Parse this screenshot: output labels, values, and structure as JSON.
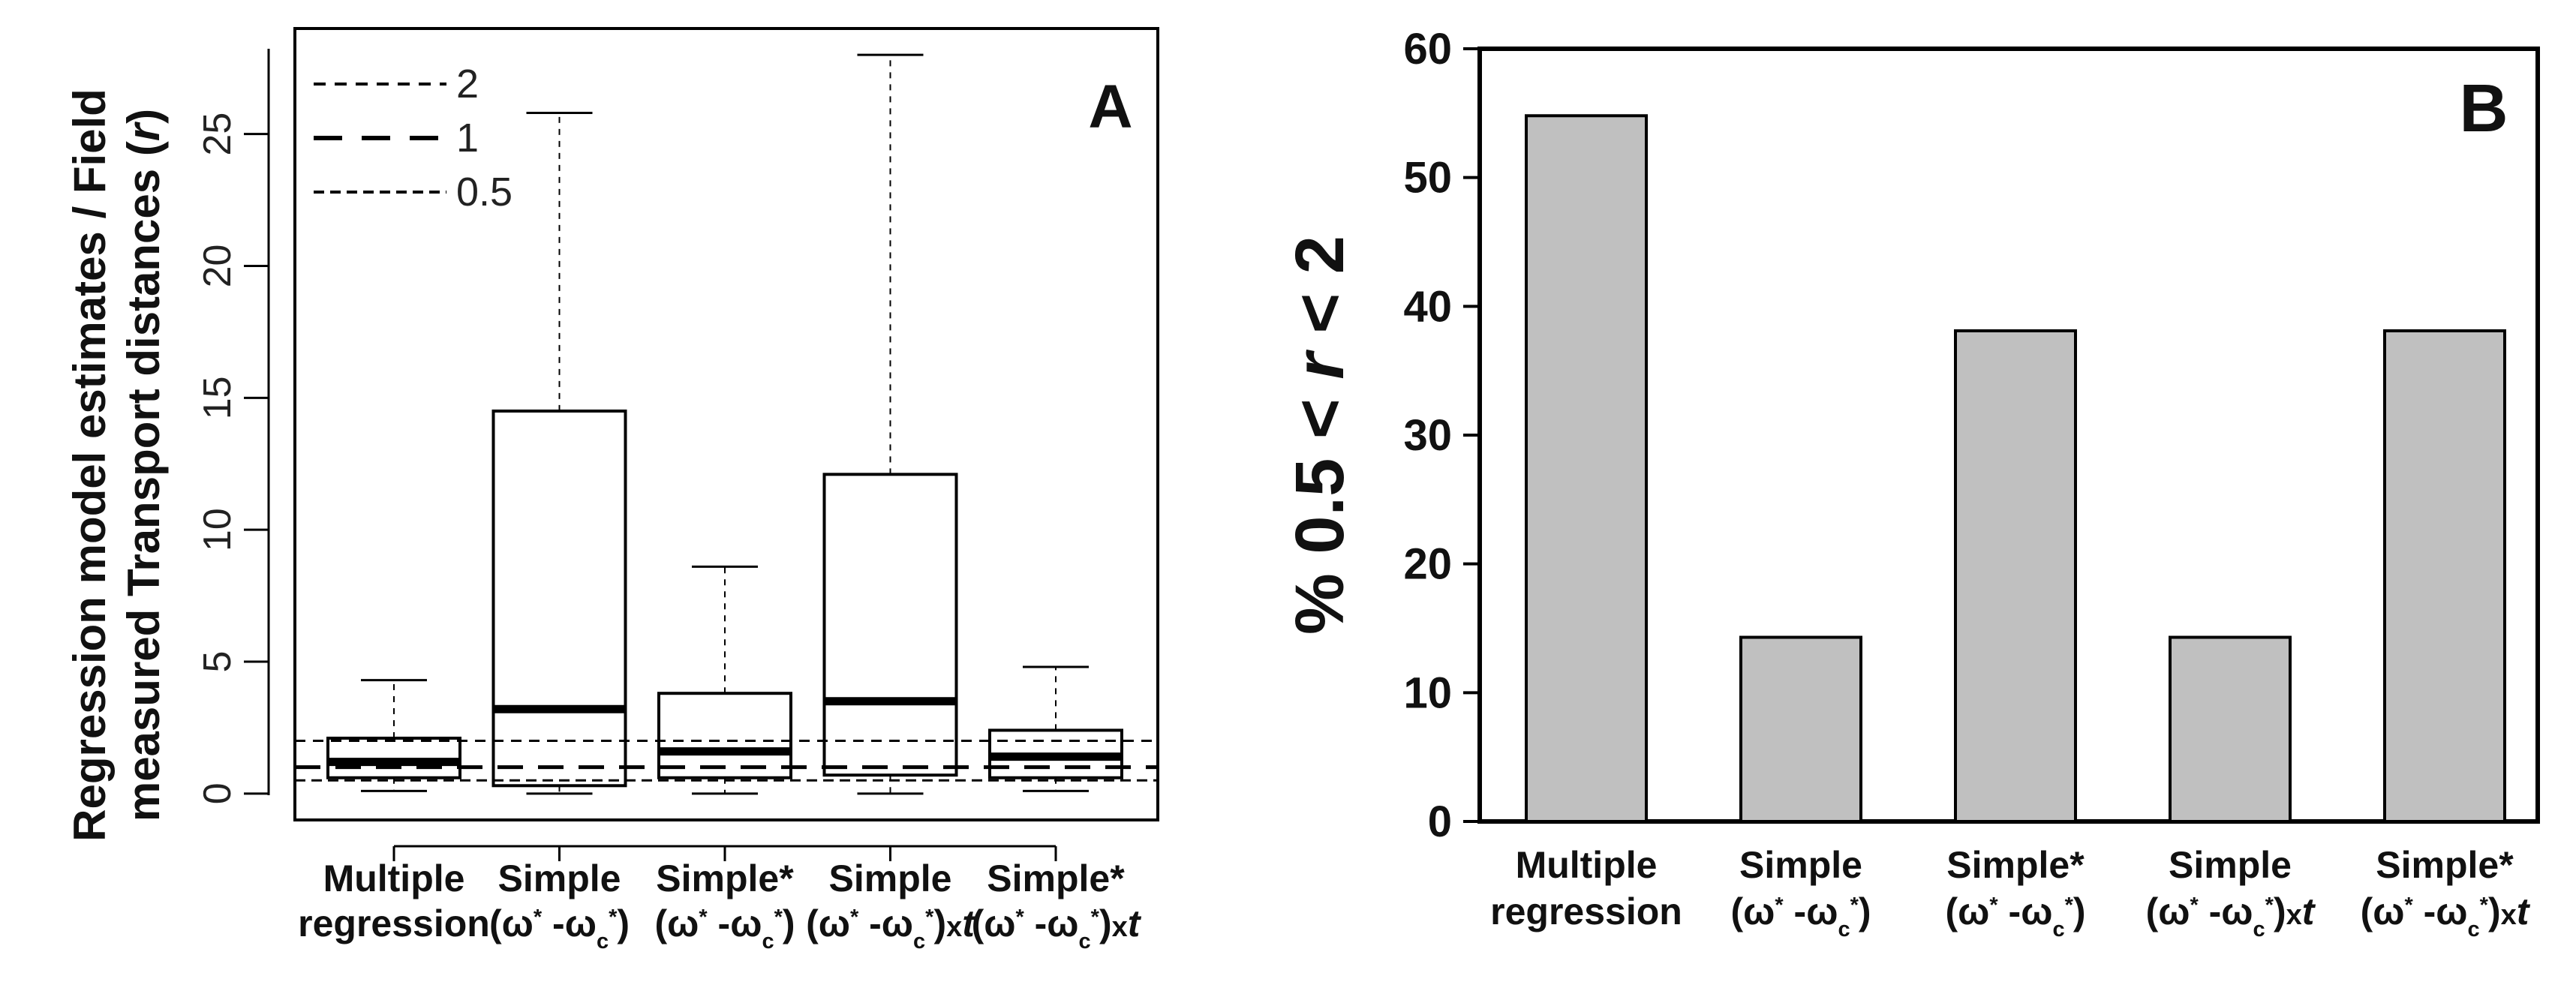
{
  "chart_data": [
    {
      "type": "boxplot",
      "panel_label": "A",
      "ylabel_line1": "Regression model estimates / Field",
      "ylabel_line2_prefix": "measured Transport distances (",
      "ylabel_italic": "r",
      "ylabel_line2_suffix": ")",
      "ylim": [
        -1,
        29
      ],
      "yticks": [
        0,
        5,
        10,
        15,
        20,
        25
      ],
      "ytick_labels": [
        "0",
        "5",
        "10",
        "15",
        "20",
        "25"
      ],
      "categories": [
        {
          "line1": "Multiple",
          "line2": "regression"
        },
        {
          "line1": "Simple",
          "line2": "(ω* -ωc*)"
        },
        {
          "line1": "Simple*",
          "line2": "(ω* -ωc*)"
        },
        {
          "line1": "Simple",
          "line2": "(ω* -ωc*)xt"
        },
        {
          "line1": "Simple*",
          "line2": "(ω* -ωc*)xt"
        }
      ],
      "boxes": [
        {
          "whisker_low": 0.1,
          "q1": 0.6,
          "median": 1.2,
          "q3": 2.1,
          "whisker_high": 4.3
        },
        {
          "whisker_low": 0.0,
          "q1": 0.3,
          "median": 3.2,
          "q3": 14.5,
          "whisker_high": 25.8
        },
        {
          "whisker_low": 0.0,
          "q1": 0.6,
          "median": 1.6,
          "q3": 3.8,
          "whisker_high": 8.6
        },
        {
          "whisker_low": 0.0,
          "q1": 0.7,
          "median": 3.5,
          "q3": 12.1,
          "whisker_high": 28.0
        },
        {
          "whisker_low": 0.1,
          "q1": 0.6,
          "median": 1.4,
          "q3": 2.4,
          "whisker_high": 4.8
        }
      ],
      "reference_lines": [
        {
          "label": "2",
          "value": 2
        },
        {
          "label": "1",
          "value": 1
        },
        {
          "label": "0.5",
          "value": 0.5
        }
      ]
    },
    {
      "type": "bar",
      "panel_label": "B",
      "ylabel_prefix": "% 0.5 < ",
      "ylabel_italic": "r",
      "ylabel_suffix": " < 2",
      "ylim": [
        0,
        60
      ],
      "yticks": [
        0,
        10,
        20,
        30,
        40,
        50,
        60
      ],
      "ytick_labels": [
        "0",
        "10",
        "20",
        "30",
        "40",
        "50",
        "60"
      ],
      "categories": [
        {
          "line1": "Multiple",
          "line2": "regression"
        },
        {
          "line1": "Simple",
          "line2": "(ω* -ωc*)"
        },
        {
          "line1": "Simple*",
          "line2": "(ω* -ωc*)"
        },
        {
          "line1": "Simple",
          "line2": "(ω* -ωc*)xt"
        },
        {
          "line1": "Simple*",
          "line2": "(ω* -ωc*)xt"
        }
      ],
      "values": [
        54.8,
        14.3,
        38.1,
        14.3,
        38.1
      ],
      "bar_color": "#c0c0c0"
    }
  ]
}
